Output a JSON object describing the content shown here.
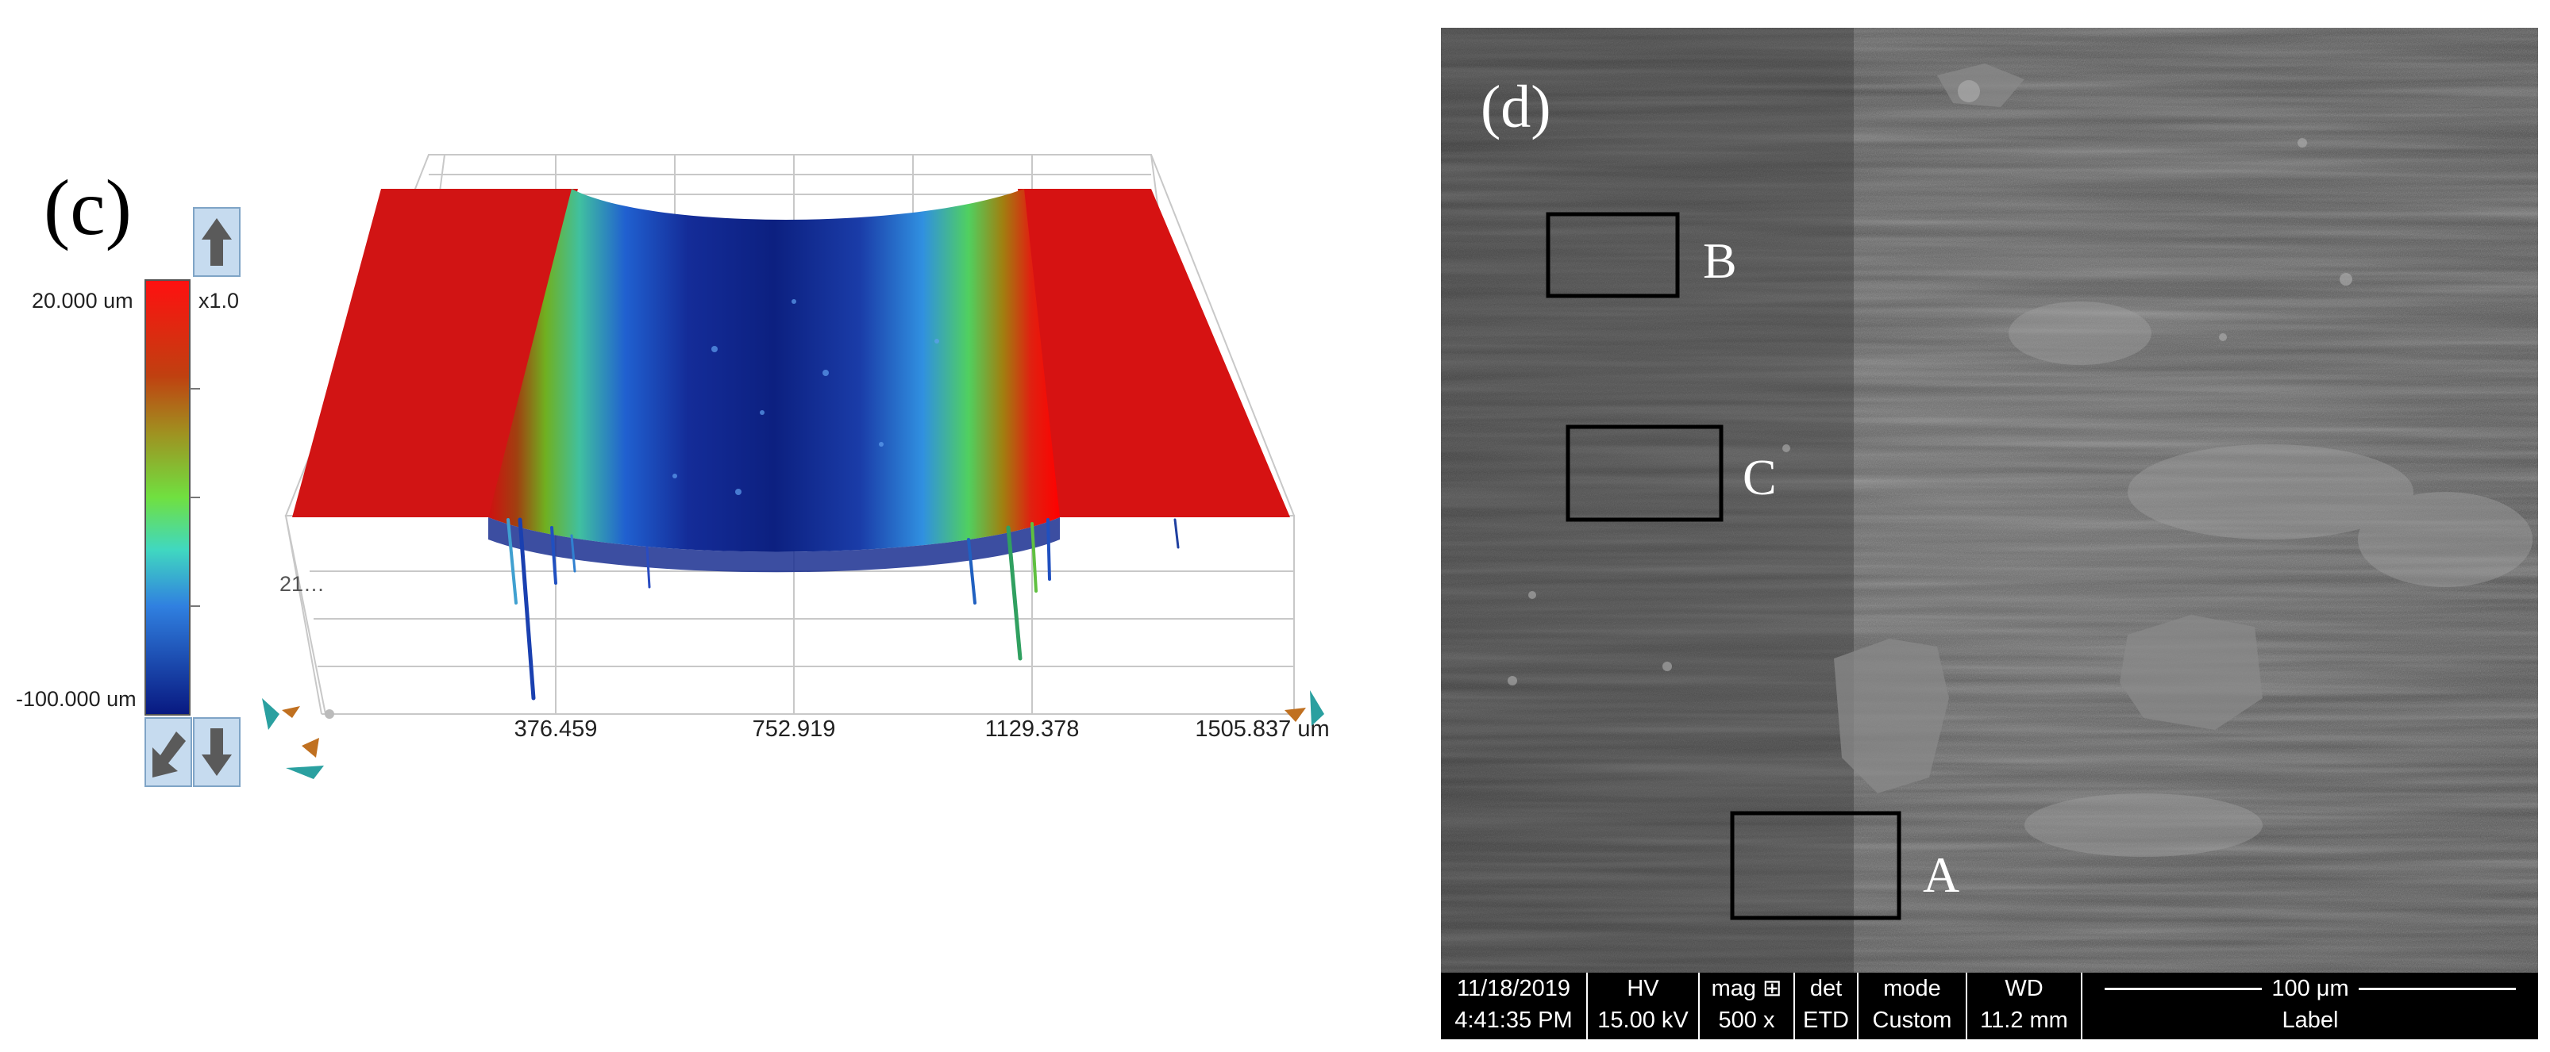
{
  "panel_c": {
    "label": "(c)",
    "scale_max": "20.000 um",
    "scale_min": "-100.000 um",
    "zoom": "x1.0",
    "partial_axis_label": "21…",
    "x_ticks": [
      "376.459",
      "752.919",
      "1129.378",
      "1505.837 um"
    ],
    "colormap": [
      "#cc0000",
      "#e83010",
      "#a08010",
      "#60c020",
      "#58e070",
      "#40b0e0",
      "#2050d0",
      "#102090"
    ]
  },
  "panel_d": {
    "label": "(d)",
    "boxes": [
      "A",
      "B",
      "C"
    ],
    "sem_info": {
      "date": "11/18/2019",
      "time": "4:41:35 PM",
      "hv_label": "HV",
      "hv_value": "15.00 kV",
      "mag_label": "mag ⊞",
      "mag_value": "500 x",
      "det_label": "det",
      "det_value": "ETD",
      "mode_label": "mode",
      "mode_value": "Custom",
      "wd_label": "WD",
      "wd_value": "11.2 mm",
      "scalebar": "100 μm",
      "label": "Label"
    }
  }
}
